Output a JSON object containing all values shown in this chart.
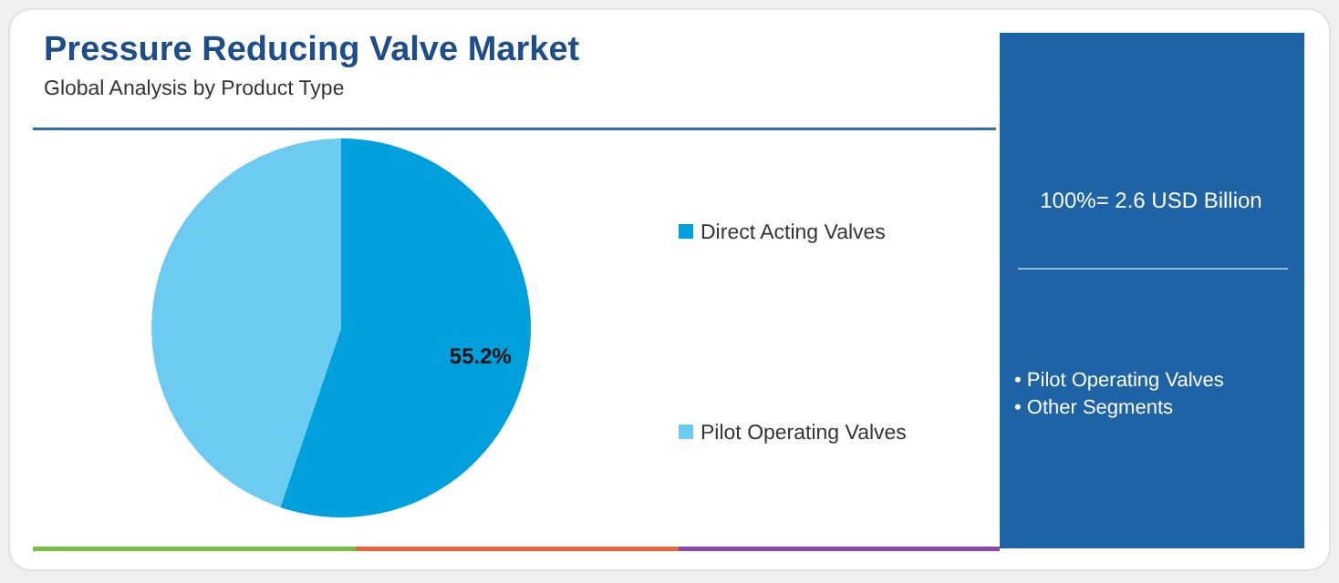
{
  "chart_data": {
    "type": "pie",
    "title": "Pressure Reducing Valve Market",
    "subtitle": "Global Analysis by Product Type",
    "categories": [
      "Direct Acting Valves",
      "Pilot Operating Valves"
    ],
    "values": [
      55.2,
      44.8
    ],
    "colors": [
      "#00a0dc",
      "#6ccbf1"
    ],
    "value_labels": [
      "55.2%",
      null
    ],
    "legend": "right",
    "annotations": [
      "100%= 2.6 USD Billion",
      "• Pilot Operating Valves",
      "• Other Segments"
    ]
  }
}
